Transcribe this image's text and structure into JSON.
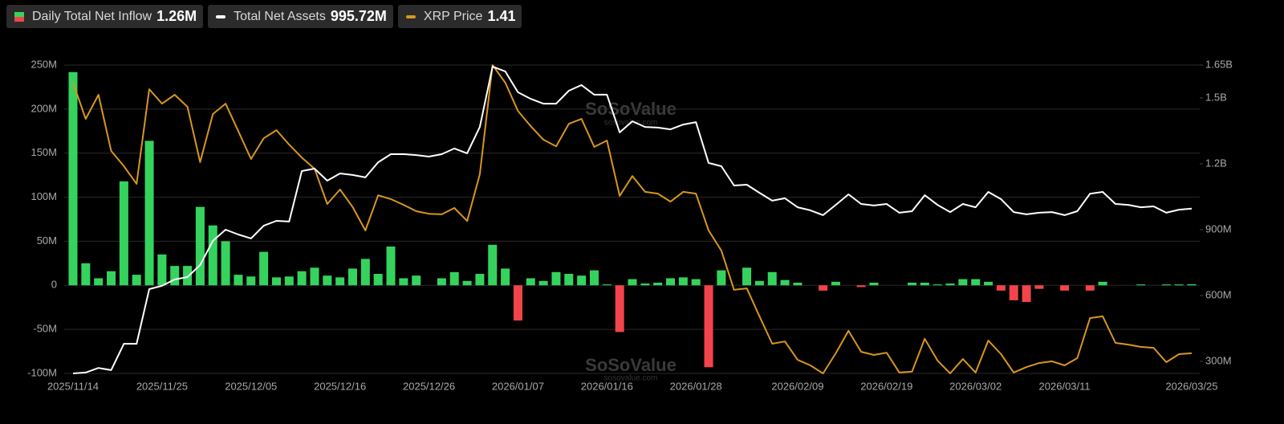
{
  "chart_data": {
    "type": "combo",
    "watermark": "SoSoValue",
    "watermark_sub": "sosovalue.com",
    "grid": true,
    "categories": [
      "2025/11/14",
      null,
      null,
      null,
      null,
      null,
      null,
      "2025/11/25",
      null,
      null,
      null,
      null,
      null,
      null,
      "2025/12/05",
      null,
      null,
      null,
      null,
      null,
      null,
      "2025/12/16",
      null,
      null,
      null,
      null,
      null,
      null,
      "2025/12/26",
      null,
      null,
      null,
      null,
      null,
      null,
      "2026/01/07",
      null,
      null,
      null,
      null,
      null,
      null,
      "2026/01/16",
      null,
      null,
      null,
      null,
      null,
      null,
      "2026/01/28",
      null,
      null,
      null,
      null,
      null,
      null,
      null,
      "2026/02/09",
      null,
      null,
      null,
      null,
      null,
      null,
      "2026/02/19",
      null,
      null,
      null,
      null,
      null,
      null,
      "2026/03/02",
      null,
      null,
      null,
      null,
      null,
      null,
      "2026/03/11",
      null,
      null,
      null,
      null,
      null,
      null,
      null,
      null,
      null,
      "2026/03/25"
    ],
    "ylim": [
      -100000000,
      250000000
    ],
    "yticks": [
      {
        "value": -100000000,
        "label": "-100M"
      },
      {
        "value": -50000000,
        "label": "-50M"
      },
      0,
      {
        "value": 50000000,
        "label": "50M"
      },
      {
        "value": 100000000,
        "label": "100M"
      },
      {
        "value": 150000000,
        "label": "150M"
      },
      {
        "value": 200000000,
        "label": "200M"
      },
      {
        "value": 250000000,
        "label": "250M"
      }
    ],
    "y2lim": [
      245000000,
      1650000000
    ],
    "y2ticks": [
      {
        "value": 300000000,
        "label": "300M"
      },
      {
        "value": 600000000,
        "label": "600M"
      },
      {
        "value": 900000000,
        "label": "900M"
      },
      {
        "value": 1200000000,
        "label": "1.2B"
      },
      {
        "value": 1500000000,
        "label": "1.5B"
      },
      {
        "value": 1650000000,
        "label": "1.65B"
      }
    ],
    "series": [
      {
        "name": "Daily Total Net Inflow",
        "type": "bar",
        "color": "#35d35e",
        "negative_color": "#f2444a",
        "current": "1.26M",
        "values": [
          242000000,
          25000000,
          8000000,
          16000000,
          118000000,
          12000000,
          164000000,
          35000000,
          22000000,
          22000000,
          89000000,
          68000000,
          50000000,
          12000000,
          10000000,
          38000000,
          9000000,
          10000000,
          16000000,
          20000000,
          11000000,
          9000000,
          19000000,
          30000000,
          13000000,
          44000000,
          8000000,
          11000000,
          0,
          8000000,
          15000000,
          5000000,
          13000000,
          46000000,
          19000000,
          -40000000,
          8000000,
          5000000,
          15000000,
          13000000,
          11000000,
          17000000,
          1000000,
          -53000000,
          7000000,
          2000000,
          3000000,
          8000000,
          9000000,
          7000000,
          -93000000,
          17000000,
          0,
          20000000,
          5000000,
          15000000,
          6000000,
          3000000,
          0,
          -6000000,
          4000000,
          0,
          -2000000,
          3000000,
          0,
          0,
          3000000,
          3000000,
          1000000,
          2000000,
          7000000,
          7000000,
          4000000,
          -6000000,
          -17000000,
          -19000000,
          -4000000,
          0,
          -6000000,
          0,
          -6000000,
          4000000,
          0,
          0,
          1000000,
          0,
          1000000,
          1000000,
          1260000
        ]
      },
      {
        "name": "Total Net Assets",
        "type": "line",
        "axis": "y2",
        "color": "#ffffff",
        "current": "995.72M",
        "values": [
          245000000,
          249000000,
          270000000,
          260000000,
          380000000,
          380000000,
          629000000,
          644000000,
          673000000,
          684000000,
          739000000,
          849000000,
          900000000,
          878000000,
          860000000,
          918000000,
          940000000,
          937000000,
          1167000000,
          1178000000,
          1123000000,
          1156000000,
          1149000000,
          1138000000,
          1207000000,
          1244000000,
          1244000000,
          1240000000,
          1233000000,
          1244000000,
          1270000000,
          1248000000,
          1368000000,
          1643000000,
          1621000000,
          1526000000,
          1496000000,
          1474000000,
          1474000000,
          1533000000,
          1559000000,
          1515000000,
          1515000000,
          1343000000,
          1394000000,
          1368000000,
          1365000000,
          1357000000,
          1379000000,
          1390000000,
          1204000000,
          1189000000,
          1101000000,
          1105000000,
          1068000000,
          1032000000,
          1043000000,
          1002000000,
          988000000,
          966000000,
          1013000000,
          1061000000,
          1017000000,
          1010000000,
          1017000000,
          977000000,
          984000000,
          1057000000,
          1013000000,
          980000000,
          1017000000,
          1002000000,
          1072000000,
          1039000000,
          980000000,
          970000000,
          977000000,
          980000000,
          966000000,
          984000000,
          1064000000,
          1072000000,
          1017000000,
          1013000000,
          1002000000,
          1006000000,
          977000000,
          991000000,
          995720000
        ]
      },
      {
        "name": "XRP Price",
        "type": "line",
        "axis": "y3",
        "color": "#d8961f",
        "current": "1.41",
        "values": [
          2.349,
          2.223,
          2.307,
          2.112,
          2.059,
          1.998,
          2.326,
          2.276,
          2.307,
          2.265,
          2.073,
          2.24,
          2.276,
          2.181,
          2.084,
          2.156,
          2.184,
          2.134,
          2.089,
          2.05,
          1.928,
          1.978,
          1.917,
          1.836,
          1.958,
          1.945,
          1.925,
          1.903,
          1.894,
          1.892,
          1.914,
          1.869,
          2.031,
          2.41,
          2.349,
          2.251,
          2.198,
          2.151,
          2.128,
          2.206,
          2.223,
          2.126,
          2.148,
          1.956,
          2.025,
          1.97,
          1.964,
          1.936,
          1.97,
          1.964,
          1.836,
          1.766,
          1.63,
          1.635,
          1.538,
          1.443,
          1.451,
          1.387,
          1.368,
          1.34,
          1.41,
          1.488,
          1.415,
          1.404,
          1.412,
          1.343,
          1.346,
          1.46,
          1.385,
          1.34,
          1.39,
          1.343,
          1.454,
          1.407,
          1.343,
          1.362,
          1.376,
          1.382,
          1.368,
          1.393,
          1.532,
          1.538,
          1.446,
          1.44,
          1.432,
          1.429,
          1.379,
          1.407,
          1.41
        ]
      }
    ]
  }
}
